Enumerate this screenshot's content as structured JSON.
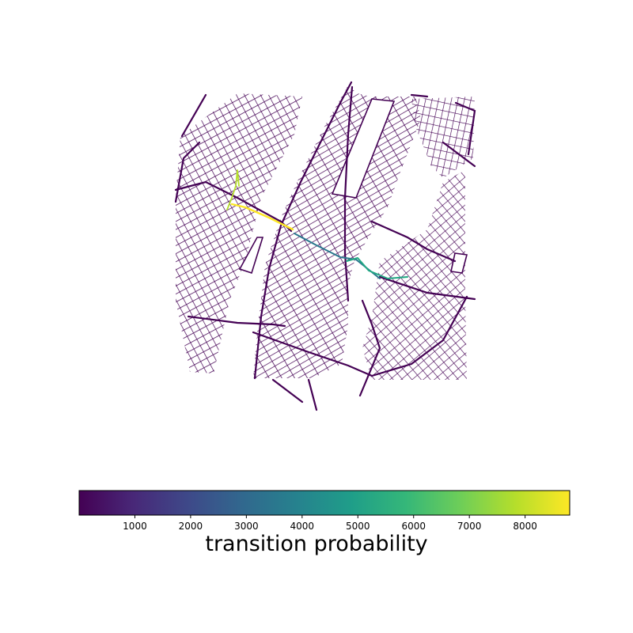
{
  "map": {
    "streets_color": "#440154",
    "route_colors": [
      "#fde725",
      "#b5de2b",
      "#22a884",
      "#2a788e",
      "#35b779",
      "#1f9e89"
    ]
  },
  "colorbar": {
    "label": "transition probability",
    "ticks": [
      "1000",
      "2000",
      "3000",
      "4000",
      "5000",
      "6000",
      "7000",
      "8000"
    ],
    "tick_values": [
      1000,
      2000,
      3000,
      4000,
      5000,
      6000,
      7000,
      8000
    ],
    "min": 0,
    "max": 8800,
    "colormap": "viridis",
    "stops": [
      "#440154",
      "#482878",
      "#3e4989",
      "#31688e",
      "#26828e",
      "#1f9e89",
      "#35b779",
      "#6ece58",
      "#b5de2b",
      "#fde725"
    ]
  }
}
